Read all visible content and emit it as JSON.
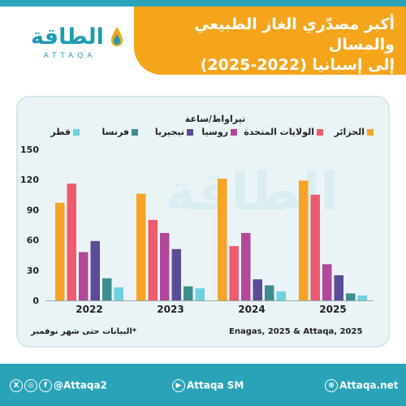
{
  "header": {
    "title_line1": "أكبر مصدّري الغاز الطبيعي والمسال",
    "title_line2": "إلى إسبانيا   (2022-2025)",
    "logo_ar": "الطاقة",
    "logo_en": "ATTAQA"
  },
  "colors": {
    "teal": "#2aa3b8",
    "orange": "#f4a51c",
    "algeria": "#f7a325",
    "usa": "#ef5b6e",
    "russia": "#b3479a",
    "nigeria": "#5b4c98",
    "france": "#3d8f8f",
    "qatar": "#6fd0e0"
  },
  "chart_data": {
    "type": "bar",
    "unit_label": "تيراواط/ساعة",
    "categories": [
      "2022",
      "2023",
      "2024",
      "2025"
    ],
    "series": [
      {
        "name": "الجزائر",
        "color": "#f7a325",
        "values": [
          97,
          106,
          121,
          119
        ]
      },
      {
        "name": "الولايات المتحدة",
        "color": "#ef5b6e",
        "values": [
          116,
          80,
          54,
          105
        ]
      },
      {
        "name": "روسيا",
        "color": "#b3479a",
        "values": [
          48,
          67,
          67,
          36
        ]
      },
      {
        "name": "نيجيريا",
        "color": "#5b4c98",
        "values": [
          59,
          51,
          21,
          25
        ]
      },
      {
        "name": "فرنسا",
        "color": "#3d8f8f",
        "values": [
          22,
          14,
          15,
          7
        ]
      },
      {
        "name": "قطر",
        "color": "#6fd0e0",
        "values": [
          13,
          12,
          9,
          5
        ]
      }
    ],
    "ylim": [
      0,
      150
    ],
    "yticks": [
      0,
      30,
      60,
      90,
      120,
      150
    ],
    "grid": false,
    "legend_position": "top"
  },
  "notes": {
    "data_note": "*البيانات حتى شهر نوفمبر",
    "source": "Enagas, 2025 & Attaqa, 2025"
  },
  "footer": {
    "social": "@Attaqa2",
    "social_icons": [
      "x-icon",
      "instagram-icon",
      "facebook-icon"
    ],
    "video": "Attaqa SM",
    "website": "Attaqa.net"
  }
}
